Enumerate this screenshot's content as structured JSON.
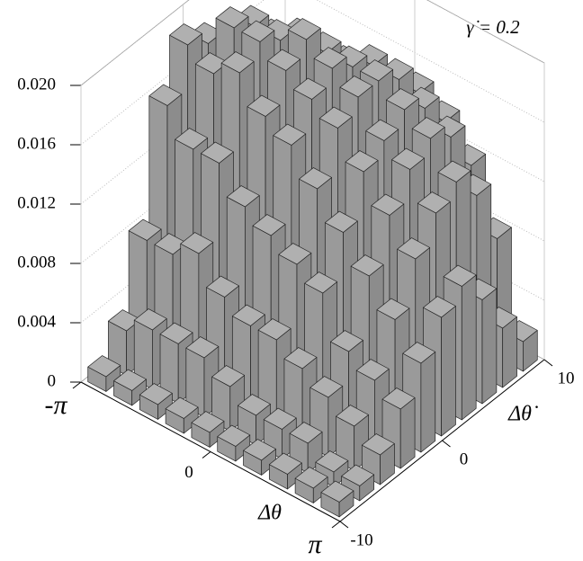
{
  "chart_data": {
    "type": "bar3d",
    "annotation": "γ̇ = 0.2",
    "xlabel": "Δθ",
    "ylabel": "Δθ̇",
    "xlim": [
      -3.14159,
      3.14159
    ],
    "xticks": [
      {
        "value": -3.14159,
        "label": "-π"
      },
      0,
      {
        "value": 3.14159,
        "label": "π"
      }
    ],
    "ylim": [
      -10,
      10
    ],
    "yticks": [
      -10,
      0,
      10
    ],
    "zlim": [
      0,
      0.02
    ],
    "zticks": [
      0,
      0.004,
      0.008,
      0.012,
      0.016,
      {
        "value": 0.02,
        "label": "0.020"
      }
    ],
    "grid": true,
    "color": "#8c8c8c",
    "values": [
      [
        0.001,
        0.003,
        0.008,
        0.016,
        0.019,
        0.018,
        0.017,
        0.015,
        0.012,
        0.009
      ],
      [
        0.001,
        0.004,
        0.008,
        0.014,
        0.018,
        0.02,
        0.019,
        0.017,
        0.014,
        0.01
      ],
      [
        0.001,
        0.004,
        0.009,
        0.014,
        0.019,
        0.02,
        0.019,
        0.018,
        0.015,
        0.011
      ],
      [
        0.001,
        0.004,
        0.007,
        0.012,
        0.017,
        0.019,
        0.02,
        0.018,
        0.016,
        0.012
      ],
      [
        0.001,
        0.003,
        0.006,
        0.011,
        0.016,
        0.018,
        0.019,
        0.018,
        0.017,
        0.014
      ],
      [
        0.001,
        0.002,
        0.006,
        0.01,
        0.014,
        0.017,
        0.018,
        0.018,
        0.017,
        0.015
      ],
      [
        0.001,
        0.002,
        0.005,
        0.009,
        0.012,
        0.015,
        0.016,
        0.017,
        0.016,
        0.014
      ],
      [
        0.001,
        0.002,
        0.004,
        0.006,
        0.01,
        0.013,
        0.015,
        0.016,
        0.015,
        0.012
      ],
      [
        0.001,
        0.001,
        0.003,
        0.005,
        0.008,
        0.011,
        0.013,
        0.014,
        0.012,
        0.008
      ],
      [
        0.001,
        0.001,
        0.002,
        0.004,
        0.006,
        0.008,
        0.009,
        0.007,
        0.004,
        0.002
      ]
    ]
  }
}
